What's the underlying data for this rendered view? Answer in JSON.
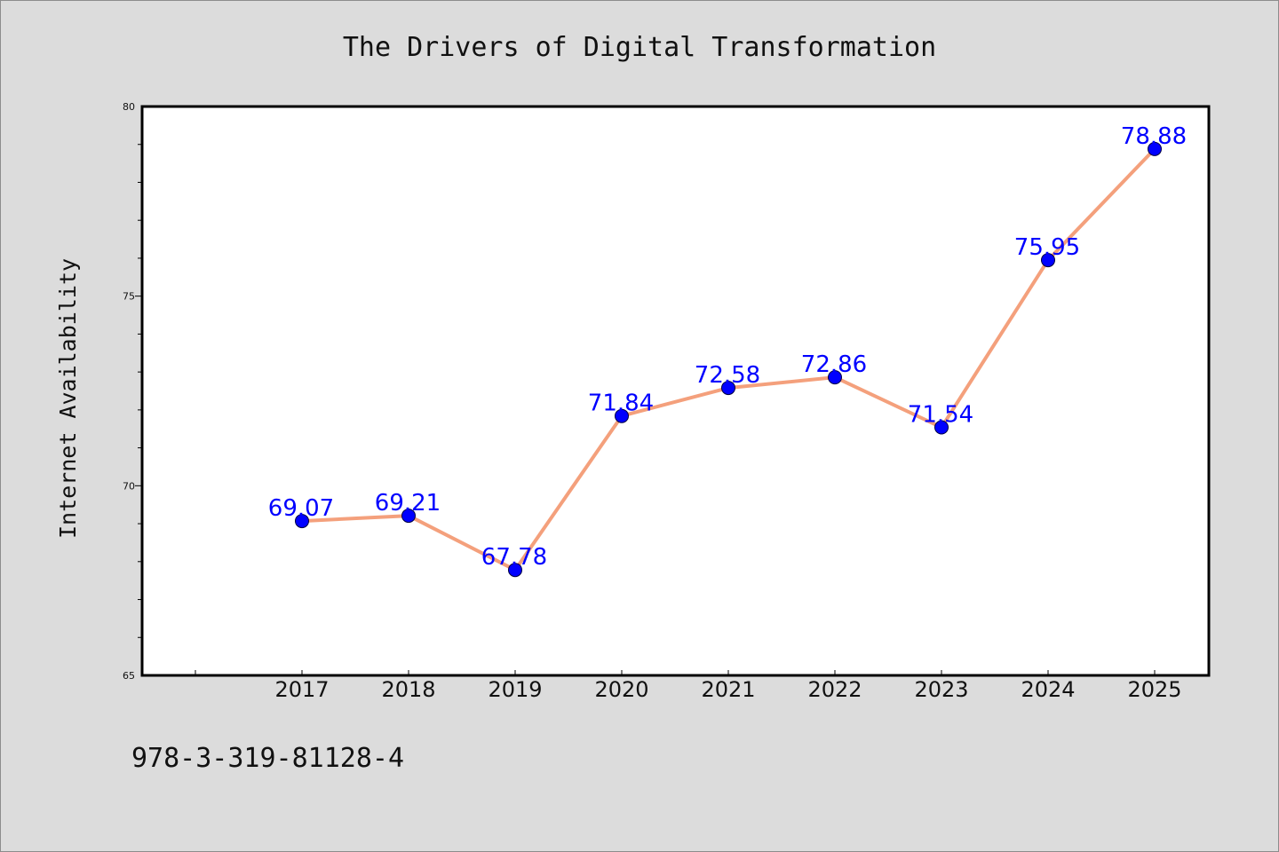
{
  "chart_data": {
    "type": "line",
    "title": "The Drivers of Digital Transformation",
    "xlabel": "",
    "ylabel": "Internet Availability",
    "categories": [
      "2017",
      "2018",
      "2019",
      "2020",
      "2021",
      "2022",
      "2023",
      "2024",
      "2025"
    ],
    "series": [
      {
        "values": [
          69.07,
          69.21,
          67.78,
          71.84,
          72.58,
          72.86,
          71.54,
          75.95,
          78.88
        ]
      }
    ],
    "data_labels": [
      "69.07",
      "69.21",
      "67.78",
      "71.84",
      "72.58",
      "72.86",
      "71.54",
      "75.95",
      "78.88"
    ],
    "ylim": [
      65,
      80
    ],
    "y_major_ticks": [
      65,
      70,
      75,
      80
    ],
    "y_tick_labels": [
      "65",
      "70",
      "75",
      "80"
    ],
    "grid": false,
    "line_color": "#f4a07c",
    "marker_color": "#0000ff",
    "label_color": "#0000ff"
  },
  "footer": {
    "isbn": "978-3-319-81128-4"
  }
}
